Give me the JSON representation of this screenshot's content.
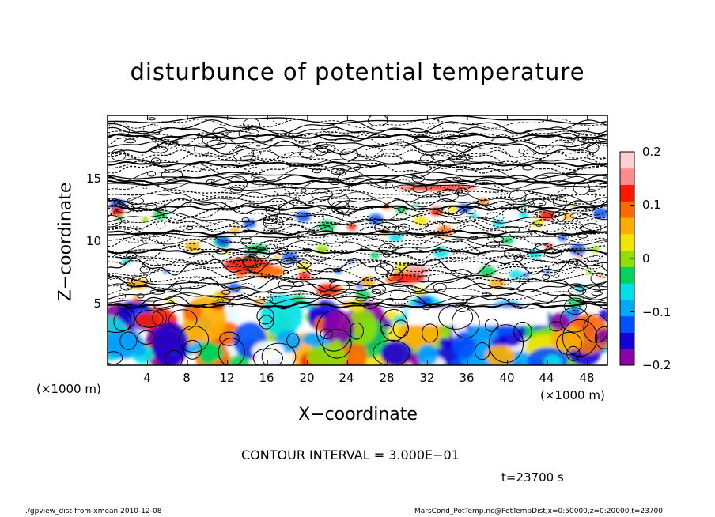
{
  "chart_data": {
    "type": "heatmap",
    "title": "disturbunce of potential temperature",
    "xlabel": "X−coordinate",
    "ylabel": "Z−coordinate",
    "x_unit_left": "(×1000 m)",
    "x_unit_right": "(×1000 m)",
    "x_ticks": [
      "4",
      "8",
      "12",
      "16",
      "20",
      "24",
      "28",
      "32",
      "36",
      "40",
      "44",
      "48"
    ],
    "y_ticks": [
      "5",
      "10",
      "15"
    ],
    "xlim": [
      0,
      50
    ],
    "ylim": [
      0,
      20
    ],
    "colorbar": {
      "ticks": [
        "0.2",
        "0.1",
        "0",
        "−0.1",
        "−0.2"
      ],
      "range": [
        -0.2,
        0.2
      ],
      "colors": [
        "#8b00a8",
        "#1500d8",
        "#0051ff",
        "#00a8ff",
        "#00e0e8",
        "#00d25a",
        "#8ee000",
        "#f2e600",
        "#ffae00",
        "#ff6a00",
        "#ff1500",
        "#ff8c8c",
        "#ffd0d0"
      ]
    },
    "contour_interval": "CONTOUR INTERVAL = 3.000E−01",
    "time_label": "t=23700 s",
    "grid": false,
    "legend": "colorbar right"
  },
  "footer": {
    "left": "./gpview_dist-from-xmean  2010-12-08",
    "right": "MarsCond_PotTemp.nc@PotTempDist,x=0:50000,z=0:20000,t=23700"
  }
}
